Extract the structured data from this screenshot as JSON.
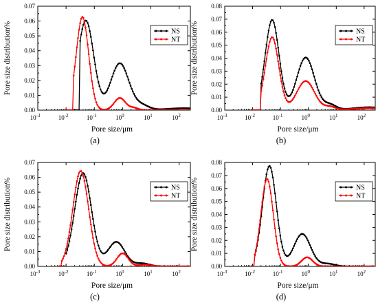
{
  "figure": {
    "colors": {
      "NS": "#000000",
      "NT": "#ff0000",
      "axis": "#000000"
    }
  },
  "chart_data": [
    {
      "type": "line",
      "panel_label": "(a)",
      "xlabel": "Pore size/μm",
      "ylabel": "Pore size distribution%",
      "x_scale": "log",
      "xlim": [
        0.001,
        250
      ],
      "ylim": [
        0,
        0.07
      ],
      "y_ticks": [
        "0.00",
        "0.01",
        "0.02",
        "0.03",
        "0.04",
        "0.05",
        "0.06",
        "0.07"
      ],
      "x_ticks": [
        {
          "base": "10",
          "exp": "-3"
        },
        {
          "base": "10",
          "exp": "-2"
        },
        {
          "base": "10",
          "exp": "-1"
        },
        {
          "base": "10",
          "exp": "0"
        },
        {
          "base": "10",
          "exp": "1"
        },
        {
          "base": "10",
          "exp": "2"
        }
      ],
      "legend": {
        "position": "top-right",
        "entries": [
          "NS",
          "NT"
        ]
      },
      "series": [
        {
          "name": "NS",
          "color": "#000000",
          "x_range": [
            0.01,
            250
          ],
          "start_at": 0.03,
          "peaks": [
            {
              "center": 0.05,
              "height": 0.0603,
              "width": 0.28
            },
            {
              "center": 0.8,
              "height": 0.0316,
              "width": 0.32
            },
            {
              "center": 5,
              "height": 0.003,
              "width": 0.25
            },
            {
              "center": 150,
              "height": 0.0013,
              "width": 0.6
            }
          ]
        },
        {
          "name": "NT",
          "color": "#ff0000",
          "x_range": [
            0.01,
            250
          ],
          "start_at": 0.018,
          "peaks": [
            {
              "center": 0.038,
              "height": 0.0628,
              "width": 0.22
            },
            {
              "center": 0.8,
              "height": 0.0082,
              "width": 0.2
            },
            {
              "center": 2.5,
              "height": 0.0015,
              "width": 0.15
            }
          ]
        }
      ]
    },
    {
      "type": "line",
      "panel_label": "(b)",
      "xlabel": "Pore size/μm",
      "ylabel": "Pore size distribution%",
      "x_scale": "log",
      "xlim": [
        0.001,
        250
      ],
      "ylim": [
        0,
        0.08
      ],
      "y_ticks": [
        "0.00",
        "0.01",
        "0.02",
        "0.03",
        "0.04",
        "0.05",
        "0.06",
        "0.07",
        "0.08"
      ],
      "x_ticks": [
        {
          "base": "10",
          "exp": "-3"
        },
        {
          "base": "10",
          "exp": "-2"
        },
        {
          "base": "10",
          "exp": "-1"
        },
        {
          "base": "10",
          "exp": "0"
        },
        {
          "base": "10",
          "exp": "1"
        },
        {
          "base": "10",
          "exp": "2"
        }
      ],
      "legend": {
        "position": "top-right",
        "entries": [
          "NS",
          "NT"
        ]
      },
      "series": [
        {
          "name": "NS",
          "color": "#000000",
          "x_range": [
            0.01,
            250
          ],
          "start_at": 0.02,
          "peaks": [
            {
              "center": 0.05,
              "height": 0.0695,
              "width": 0.25
            },
            {
              "center": 0.8,
              "height": 0.0405,
              "width": 0.32
            },
            {
              "center": 6,
              "height": 0.004,
              "width": 0.22
            },
            {
              "center": 150,
              "height": 0.0022,
              "width": 0.6
            }
          ]
        },
        {
          "name": "NT",
          "color": "#ff0000",
          "x_range": [
            0.01,
            250
          ],
          "start_at": 0.02,
          "peaks": [
            {
              "center": 0.05,
              "height": 0.0562,
              "width": 0.24
            },
            {
              "center": 0.8,
              "height": 0.0224,
              "width": 0.32
            },
            {
              "center": 6,
              "height": 0.0025,
              "width": 0.2
            },
            {
              "center": 150,
              "height": 0.0015,
              "width": 0.6
            }
          ]
        }
      ]
    },
    {
      "type": "line",
      "panel_label": "(c)",
      "xlabel": "Pore size/μm",
      "ylabel": "Pore size distribution%",
      "x_scale": "log",
      "xlim": [
        0.001,
        250
      ],
      "ylim": [
        0,
        0.07
      ],
      "y_ticks": [
        "0.00",
        "0.01",
        "0.02",
        "0.03",
        "0.04",
        "0.05",
        "0.06",
        "0.07"
      ],
      "x_ticks": [
        {
          "base": "10",
          "exp": "-3"
        },
        {
          "base": "10",
          "exp": "-2"
        },
        {
          "base": "10",
          "exp": "-1"
        },
        {
          "base": "10",
          "exp": "0"
        },
        {
          "base": "10",
          "exp": "1"
        },
        {
          "base": "10",
          "exp": "2"
        }
      ],
      "legend": {
        "position": "top-right",
        "entries": [
          "NS",
          "NT"
        ]
      },
      "series": [
        {
          "name": "NS",
          "color": "#000000",
          "x_range": [
            0.01,
            250
          ],
          "start_at": 0.01,
          "peaks": [
            {
              "center": 0.04,
              "height": 0.0628,
              "width": 0.3
            },
            {
              "center": 0.6,
              "height": 0.0165,
              "width": 0.3
            },
            {
              "center": 5,
              "height": 0.002,
              "width": 0.25
            }
          ]
        },
        {
          "name": "NT",
          "color": "#ff0000",
          "x_range": [
            0.005,
            250
          ],
          "start_at": 0.007,
          "peaks": [
            {
              "center": 0.033,
              "height": 0.0643,
              "width": 0.28
            },
            {
              "center": 1.0,
              "height": 0.0088,
              "width": 0.2
            },
            {
              "center": 6,
              "height": 0.0012,
              "width": 0.2
            }
          ]
        }
      ]
    },
    {
      "type": "line",
      "panel_label": "(d)",
      "xlabel": "Pore size/μm",
      "ylabel": "Pore size distribution%",
      "x_scale": "log",
      "xlim": [
        0.001,
        250
      ],
      "ylim": [
        0,
        0.08
      ],
      "y_ticks": [
        "0.00",
        "0.01",
        "0.02",
        "0.03",
        "0.04",
        "0.05",
        "0.06",
        "0.07",
        "0.08"
      ],
      "x_ticks": [
        {
          "base": "10",
          "exp": "-3"
        },
        {
          "base": "10",
          "exp": "-2"
        },
        {
          "base": "10",
          "exp": "-1"
        },
        {
          "base": "10",
          "exp": "0"
        },
        {
          "base": "10",
          "exp": "1"
        },
        {
          "base": "10",
          "exp": "2"
        }
      ],
      "legend": {
        "position": "top-right",
        "entries": [
          "NS",
          "NT"
        ]
      },
      "series": [
        {
          "name": "NS",
          "color": "#000000",
          "x_range": [
            0.01,
            250
          ],
          "start_at": 0.012,
          "peaks": [
            {
              "center": 0.04,
              "height": 0.0773,
              "width": 0.25
            },
            {
              "center": 0.6,
              "height": 0.025,
              "width": 0.3
            },
            {
              "center": 5,
              "height": 0.002,
              "width": 0.25
            }
          ]
        },
        {
          "name": "NT",
          "color": "#ff0000",
          "x_range": [
            0.01,
            250
          ],
          "start_at": 0.012,
          "peaks": [
            {
              "center": 0.033,
              "height": 0.0673,
              "width": 0.22
            },
            {
              "center": 0.9,
              "height": 0.007,
              "width": 0.2
            }
          ]
        }
      ]
    }
  ]
}
